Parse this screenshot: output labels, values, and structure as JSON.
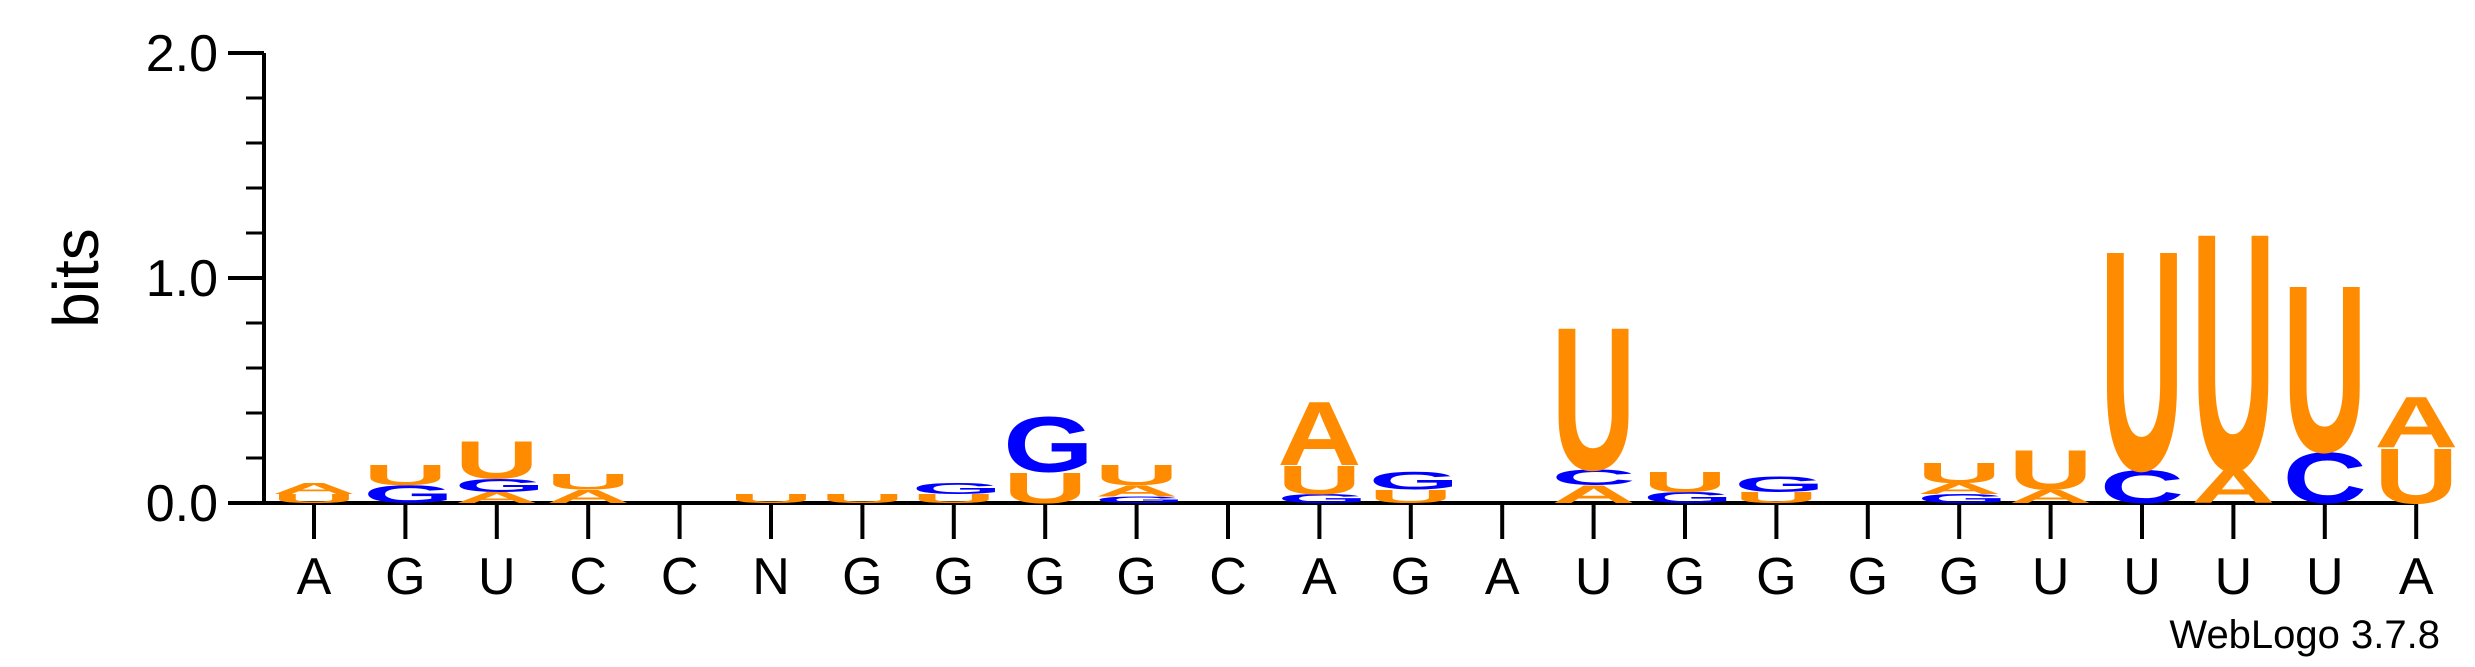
{
  "chart_data": {
    "type": "sequence-logo",
    "ylabel": "bits",
    "ylim": [
      0,
      2.0
    ],
    "yticks": [
      {
        "value": 0.0,
        "label": "0.0"
      },
      {
        "value": 1.0,
        "label": "1.0"
      },
      {
        "value": 2.0,
        "label": "2.0"
      }
    ],
    "categories": [
      "A",
      "G",
      "U",
      "C",
      "C",
      "N",
      "G",
      "G",
      "G",
      "G",
      "C",
      "A",
      "G",
      "A",
      "U",
      "G",
      "G",
      "G",
      "G",
      "U",
      "U",
      "U",
      "U",
      "A"
    ],
    "colors": {
      "A": "#FF8C00",
      "U": "#FF8C00",
      "G": "#0000FF",
      "C": "#0000FF"
    },
    "positions": [
      {
        "stack": [
          {
            "letter": "U",
            "bits": 0.04
          },
          {
            "letter": "A",
            "bits": 0.05
          }
        ]
      },
      {
        "stack": [
          {
            "letter": "G",
            "bits": 0.08
          },
          {
            "letter": "U",
            "bits": 0.09
          }
        ]
      },
      {
        "stack": [
          {
            "letter": "A",
            "bits": 0.05
          },
          {
            "letter": "G",
            "bits": 0.06
          },
          {
            "letter": "U",
            "bits": 0.17
          }
        ]
      },
      {
        "stack": [
          {
            "letter": "A",
            "bits": 0.06
          },
          {
            "letter": "U",
            "bits": 0.07
          }
        ]
      },
      {
        "stack": []
      },
      {
        "stack": [
          {
            "letter": "U",
            "bits": 0.04
          }
        ]
      },
      {
        "stack": [
          {
            "letter": "U",
            "bits": 0.04
          }
        ]
      },
      {
        "stack": [
          {
            "letter": "U",
            "bits": 0.04
          },
          {
            "letter": "G",
            "bits": 0.05
          }
        ]
      },
      {
        "stack": [
          {
            "letter": "U",
            "bits": 0.14
          },
          {
            "letter": "G",
            "bits": 0.25
          }
        ]
      },
      {
        "stack": [
          {
            "letter": "G",
            "bits": 0.03
          },
          {
            "letter": "A",
            "bits": 0.05
          },
          {
            "letter": "U",
            "bits": 0.09
          }
        ]
      },
      {
        "stack": []
      },
      {
        "stack": [
          {
            "letter": "G",
            "bits": 0.04
          },
          {
            "letter": "U",
            "bits": 0.13
          },
          {
            "letter": "A",
            "bits": 0.29
          }
        ]
      },
      {
        "stack": [
          {
            "letter": "U",
            "bits": 0.06
          },
          {
            "letter": "G",
            "bits": 0.08
          }
        ]
      },
      {
        "stack": []
      },
      {
        "stack": [
          {
            "letter": "A",
            "bits": 0.08
          },
          {
            "letter": "C",
            "bits": 0.07
          },
          {
            "letter": "U",
            "bits": 0.65
          }
        ]
      },
      {
        "stack": [
          {
            "letter": "G",
            "bits": 0.05
          },
          {
            "letter": "U",
            "bits": 0.09
          }
        ]
      },
      {
        "stack": [
          {
            "letter": "U",
            "bits": 0.05
          },
          {
            "letter": "G",
            "bits": 0.07
          }
        ]
      },
      {
        "stack": []
      },
      {
        "stack": [
          {
            "letter": "G",
            "bits": 0.04
          },
          {
            "letter": "A",
            "bits": 0.05
          },
          {
            "letter": "U",
            "bits": 0.09
          }
        ]
      },
      {
        "stack": [
          {
            "letter": "A",
            "bits": 0.06
          },
          {
            "letter": "U",
            "bits": 0.18
          }
        ]
      },
      {
        "stack": [
          {
            "letter": "C",
            "bits": 0.15
          },
          {
            "letter": "U",
            "bits": 1.0
          }
        ]
      },
      {
        "stack": [
          {
            "letter": "A",
            "bits": 0.15
          },
          {
            "letter": "U",
            "bits": 1.08
          }
        ]
      },
      {
        "stack": [
          {
            "letter": "C",
            "bits": 0.23
          },
          {
            "letter": "U",
            "bits": 0.76
          }
        ]
      },
      {
        "stack": [
          {
            "letter": "U",
            "bits": 0.25
          },
          {
            "letter": "A",
            "bits": 0.23
          }
        ]
      }
    ]
  },
  "footer": {
    "credit": "WebLogo 3.7.8"
  }
}
